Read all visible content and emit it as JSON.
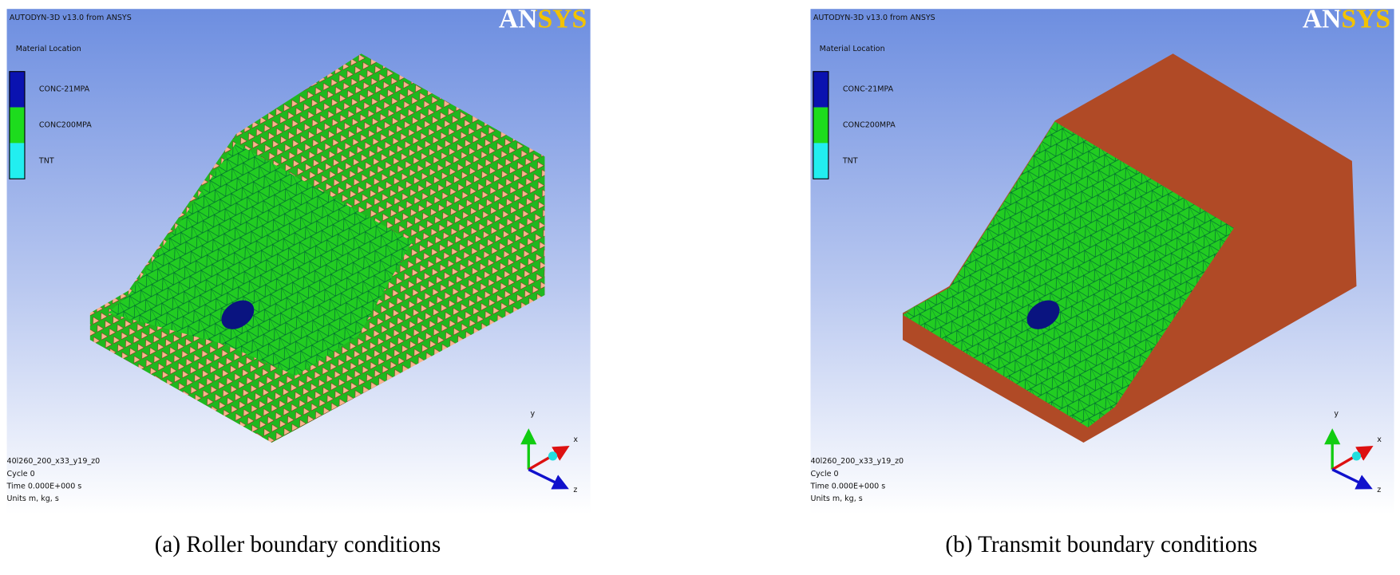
{
  "panels": [
    {
      "header": "AUTODYN-3D v13.0 from ANSYS",
      "logo": "ANSYS",
      "legend_title": "Material Location",
      "legend": [
        "CONC-21MPA",
        "CONC200MPA",
        "TNT"
      ],
      "info": [
        "40l260_200_x33_y19_z0",
        "Cycle 0",
        "Time 0.000E+000 s",
        "Units m, kg, s"
      ],
      "axes": [
        "y",
        "x",
        "z"
      ],
      "caption": "(a) Roller boundary conditions"
    },
    {
      "header": "AUTODYN-3D v13.0 from ANSYS",
      "logo": "ANSYS",
      "legend_title": "Material Location",
      "legend": [
        "CONC-21MPA",
        "CONC200MPA",
        "TNT"
      ],
      "info": [
        "40l260_200_x33_y19_z0",
        "Cycle 0",
        "Time 0.000E+000 s",
        "Units m, kg, s"
      ],
      "axes": [
        "y",
        "x",
        "z"
      ],
      "caption": "(b) Transmit boundary conditions"
    }
  ]
}
